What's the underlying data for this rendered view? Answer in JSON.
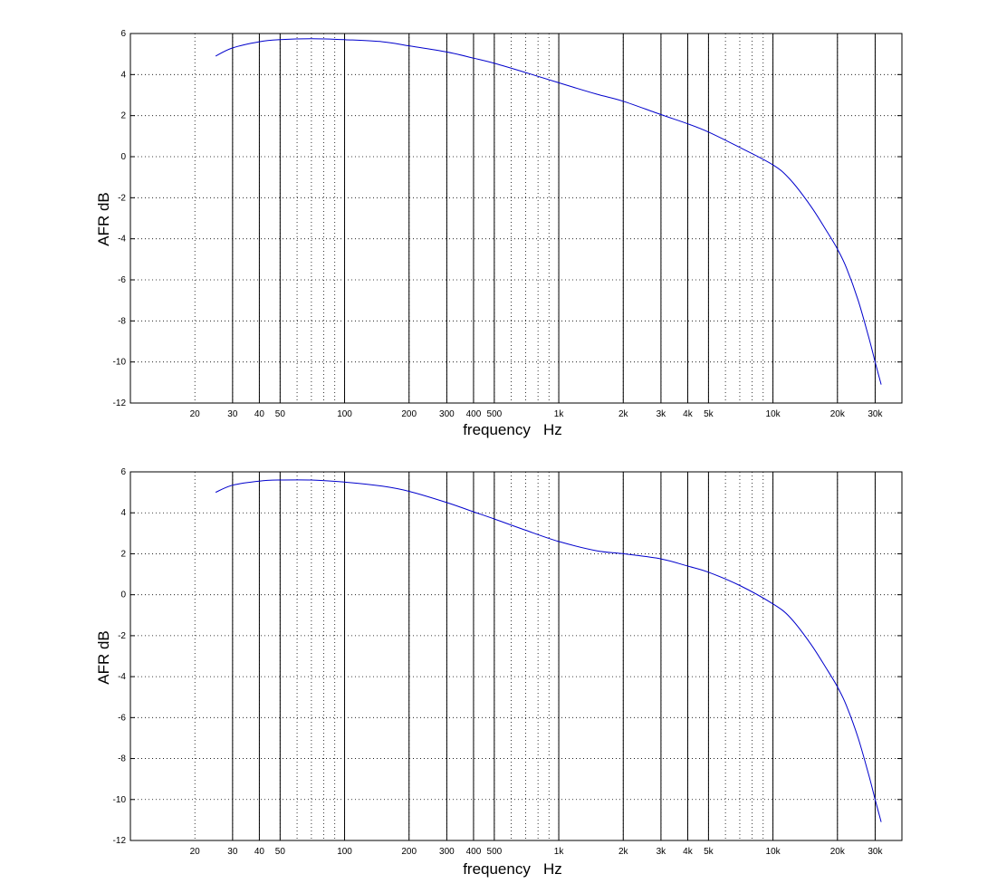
{
  "chart_data": [
    {
      "type": "line",
      "xscale": "log",
      "xlim": [
        10,
        40000
      ],
      "ylim": [
        -12,
        6
      ],
      "xlabel": "frequency   Hz",
      "ylabel": "AFR dB",
      "grid": true,
      "y_ticks": [
        6,
        4,
        2,
        0,
        -2,
        -4,
        -6,
        -8,
        -10,
        -12
      ],
      "x_ticks": [
        {
          "value": 20,
          "label": "20"
        },
        {
          "value": 30,
          "label": "30"
        },
        {
          "value": 40,
          "label": "40"
        },
        {
          "value": 50,
          "label": "50"
        },
        {
          "value": 100,
          "label": "100"
        },
        {
          "value": 200,
          "label": "200"
        },
        {
          "value": 300,
          "label": "300"
        },
        {
          "value": 400,
          "label": "400"
        },
        {
          "value": 500,
          "label": "500"
        },
        {
          "value": 1000,
          "label": "1k"
        },
        {
          "value": 2000,
          "label": "2k"
        },
        {
          "value": 3000,
          "label": "3k"
        },
        {
          "value": 4000,
          "label": "4k"
        },
        {
          "value": 5000,
          "label": "5k"
        },
        {
          "value": 10000,
          "label": "10k"
        },
        {
          "value": 20000,
          "label": "20k"
        },
        {
          "value": 30000,
          "label": "30k"
        }
      ],
      "vertical_lines": [
        30,
        40,
        50,
        100,
        200,
        300,
        400,
        500,
        1000,
        2000,
        3000,
        4000,
        5000,
        10000,
        20000,
        30000
      ],
      "series": [
        {
          "color": "#0000cc",
          "x": [
            25,
            30,
            40,
            50,
            70,
            100,
            150,
            200,
            300,
            400,
            500,
            700,
            1000,
            1500,
            2000,
            3000,
            4000,
            5000,
            7000,
            10000,
            12000,
            15000,
            18000,
            20000,
            22000,
            25000,
            28000,
            30000,
            32000
          ],
          "y": [
            4.9,
            5.3,
            5.6,
            5.7,
            5.75,
            5.7,
            5.6,
            5.4,
            5.1,
            4.8,
            4.55,
            4.1,
            3.6,
            3.05,
            2.7,
            2.05,
            1.6,
            1.2,
            0.45,
            -0.4,
            -1.1,
            -2.4,
            -3.7,
            -4.5,
            -5.4,
            -7.0,
            -8.8,
            -10.0,
            -11.1
          ]
        }
      ]
    },
    {
      "type": "line",
      "xscale": "log",
      "xlim": [
        10,
        40000
      ],
      "ylim": [
        -12,
        6
      ],
      "xlabel": "frequency   Hz",
      "ylabel": "AFR dB",
      "grid": true,
      "y_ticks": [
        6,
        4,
        2,
        0,
        -2,
        -4,
        -6,
        -8,
        -10,
        -12
      ],
      "x_ticks": [
        {
          "value": 20,
          "label": "20"
        },
        {
          "value": 30,
          "label": "30"
        },
        {
          "value": 40,
          "label": "40"
        },
        {
          "value": 50,
          "label": "50"
        },
        {
          "value": 100,
          "label": "100"
        },
        {
          "value": 200,
          "label": "200"
        },
        {
          "value": 300,
          "label": "300"
        },
        {
          "value": 400,
          "label": "400"
        },
        {
          "value": 500,
          "label": "500"
        },
        {
          "value": 1000,
          "label": "1k"
        },
        {
          "value": 2000,
          "label": "2k"
        },
        {
          "value": 3000,
          "label": "3k"
        },
        {
          "value": 4000,
          "label": "4k"
        },
        {
          "value": 5000,
          "label": "5k"
        },
        {
          "value": 10000,
          "label": "10k"
        },
        {
          "value": 20000,
          "label": "20k"
        },
        {
          "value": 30000,
          "label": "30k"
        }
      ],
      "vertical_lines": [
        30,
        40,
        50,
        100,
        200,
        300,
        400,
        500,
        1000,
        2000,
        3000,
        4000,
        5000,
        10000,
        20000,
        30000
      ],
      "series": [
        {
          "color": "#0000cc",
          "x": [
            25,
            30,
            40,
            50,
            70,
            100,
            150,
            200,
            300,
            400,
            500,
            700,
            1000,
            1500,
            2000,
            3000,
            4000,
            5000,
            7000,
            10000,
            12000,
            15000,
            18000,
            20000,
            22000,
            25000,
            28000,
            30000,
            32000
          ],
          "y": [
            5.0,
            5.35,
            5.55,
            5.6,
            5.6,
            5.5,
            5.3,
            5.05,
            4.5,
            4.05,
            3.7,
            3.15,
            2.6,
            2.15,
            2.0,
            1.75,
            1.4,
            1.1,
            0.45,
            -0.45,
            -1.1,
            -2.4,
            -3.7,
            -4.5,
            -5.4,
            -7.0,
            -8.8,
            -10.0,
            -11.1
          ]
        }
      ]
    }
  ]
}
